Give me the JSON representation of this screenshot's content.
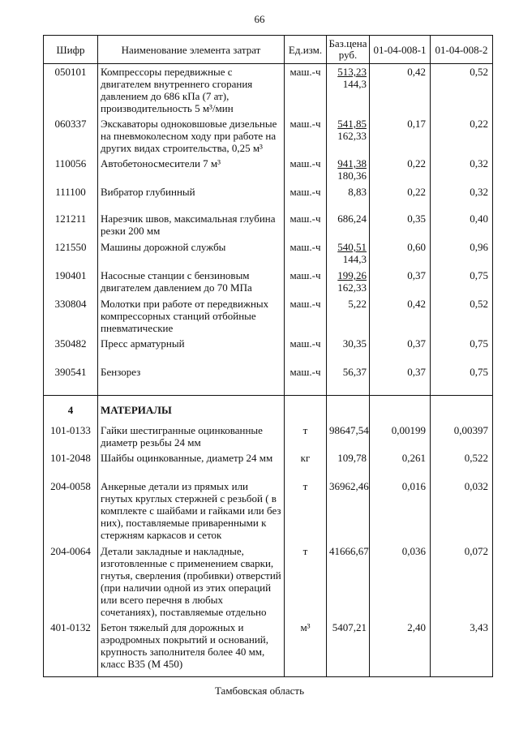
{
  "page_number": "66",
  "table": {
    "header": [
      "Шифр",
      "Наименование элемента затрат",
      "Ед.изм.",
      "Баз.цена руб.",
      "01-04-008-1",
      "01-04-008-2"
    ],
    "rows": [
      {
        "code": "050101",
        "name": "Компрессоры передвижные с двигателем внутреннего сгорания давлением до 686 кПа (7 ат), производительность 5 м³/мин",
        "unit": "маш.-ч",
        "price": [
          "513,23",
          "144,3"
        ],
        "values": [
          "0,42",
          "0,52"
        ]
      },
      {
        "code": "060337",
        "name": "Экскаваторы одноковшовые дизельные на пневмоколесном ходу при работе на других видах строительства, 0,25 м³",
        "unit": "маш.-ч",
        "price": [
          "541,85",
          "162,33"
        ],
        "values": [
          "0,17",
          "0,22"
        ]
      },
      {
        "code": "110056",
        "name": "Автобетоносмесители 7 м³",
        "unit": "маш.-ч",
        "price": [
          "941,38",
          "180,36"
        ],
        "values": [
          "0,22",
          "0,32"
        ]
      },
      {
        "code": "111100",
        "name": "Вибратор глубинный",
        "unit": "маш.-ч",
        "price": [
          "8,83"
        ],
        "values": [
          "0,22",
          "0,32"
        ]
      },
      {
        "code": "121211",
        "name": "Нарезчик швов, максимальная глубина резки 200 мм",
        "unit": "маш.-ч",
        "price": [
          "686,24"
        ],
        "values": [
          "0,35",
          "0,40"
        ]
      },
      {
        "code": "121550",
        "name": "Машины дорожной службы",
        "unit": "маш.-ч",
        "price": [
          "540,51",
          "144,3"
        ],
        "values": [
          "0,60",
          "0,96"
        ]
      },
      {
        "code": "190401",
        "name": "Насосные станции с бензиновым двигателем давлением до 70 МПа",
        "unit": "маш.-ч",
        "price": [
          "199,26",
          "162,33"
        ],
        "values": [
          "0,37",
          "0,75"
        ]
      },
      {
        "code": "330804",
        "name": "Молотки при работе от передвижных компрессорных станций отбойные пневматические",
        "unit": "маш.-ч",
        "price": [
          "5,22"
        ],
        "values": [
          "0,42",
          "0,52"
        ]
      },
      {
        "code": "350482",
        "name": "Пресс арматурный",
        "unit": "маш.-ч",
        "price": [
          "30,35"
        ],
        "values": [
          "0,37",
          "0,75"
        ]
      },
      {
        "code": "390541",
        "name": "Бензорез",
        "unit": "маш.-ч",
        "price": [
          "56,37"
        ],
        "values": [
          "0,37",
          "0,75"
        ]
      },
      {
        "code": "4",
        "name": "МАТЕРИАЛЫ",
        "section": true
      },
      {
        "code": "101-0133",
        "name": "Гайки шестигранные оцинкованные диаметр резьбы 24 мм",
        "unit": "т",
        "price": [
          "98647,54"
        ],
        "values": [
          "0,00199",
          "0,00397"
        ]
      },
      {
        "code": "101-2048",
        "name": "Шайбы оцинкованные, диаметр 24 мм",
        "unit": "кг",
        "price": [
          "109,78"
        ],
        "values": [
          "0,261",
          "0,522"
        ]
      },
      {
        "code": "204-0058",
        "name": "Анкерные детали из прямых или гнутых круглых стержней с резьбой ( в комплекте с шайбами и гайками или без них), поставляемые приваренными к стержням каркасов и сеток",
        "unit": "т",
        "price": [
          "36962,46"
        ],
        "values": [
          "0,016",
          "0,032"
        ]
      },
      {
        "code": "204-0064",
        "name": "Детали закладные и накладные, изготовленные с применением сварки, гнутья, сверления (пробивки) отверстий (при наличии одной из этих операций или всего перечня в любых сочетаниях), поставляемые отдельно",
        "unit": "т",
        "price": [
          "41666,67"
        ],
        "values": [
          "0,036",
          "0,072"
        ]
      },
      {
        "code": "401-0132",
        "name": "Бетон тяжелый для дорожных и аэродромных покрытий и оснований, крупность заполнителя более 40 мм, класс В35 (М 450)",
        "unit": "м³",
        "price": [
          "5407,21"
        ],
        "values": [
          "2,40",
          "3,43"
        ]
      }
    ]
  },
  "footer": "Тамбовская область"
}
